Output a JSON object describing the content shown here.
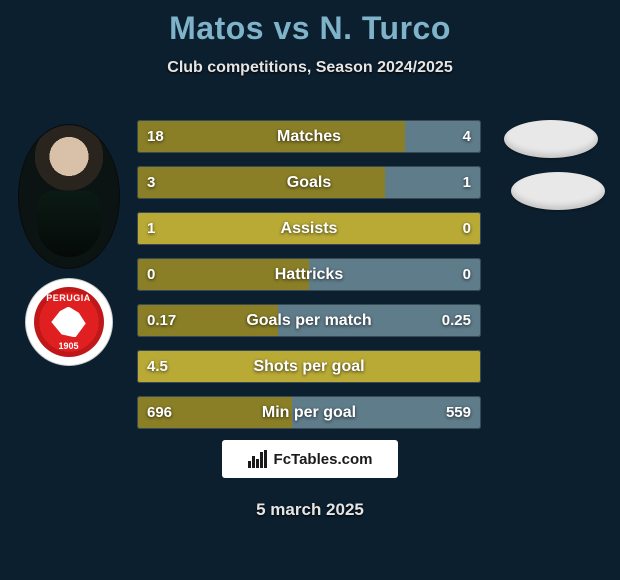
{
  "title": "Matos vs N. Turco",
  "subtitle": "Club competitions, Season 2024/2025",
  "date": "5 march 2025",
  "brand": "FcTables.com",
  "colors": {
    "background": "#0c1f2e",
    "title": "#7fb3c9",
    "text": "#e5e5e5",
    "bar_left_dark": "#8a7f26",
    "bar_left_light": "#b9aa36",
    "bar_right": "#5f7c8a",
    "bar_border": "#3a4a55"
  },
  "badge": {
    "name": "PERUGIA",
    "year": "1905",
    "color": "#e02020"
  },
  "rows": [
    {
      "label": "Matches",
      "left": "18",
      "right": "4",
      "left_pct": 78,
      "left_dark": true
    },
    {
      "label": "Goals",
      "left": "3",
      "right": "1",
      "left_pct": 72,
      "left_dark": true
    },
    {
      "label": "Assists",
      "left": "1",
      "right": "0",
      "left_pct": 100,
      "left_dark": false
    },
    {
      "label": "Hattricks",
      "left": "0",
      "right": "0",
      "left_pct": 50,
      "left_dark": true
    },
    {
      "label": "Goals per match",
      "left": "0.17",
      "right": "0.25",
      "left_pct": 41,
      "left_dark": true
    },
    {
      "label": "Shots per goal",
      "left": "4.5",
      "right": "",
      "left_pct": 100,
      "left_dark": false
    },
    {
      "label": "Min per goal",
      "left": "696",
      "right": "559",
      "left_pct": 45,
      "left_dark": true
    }
  ]
}
